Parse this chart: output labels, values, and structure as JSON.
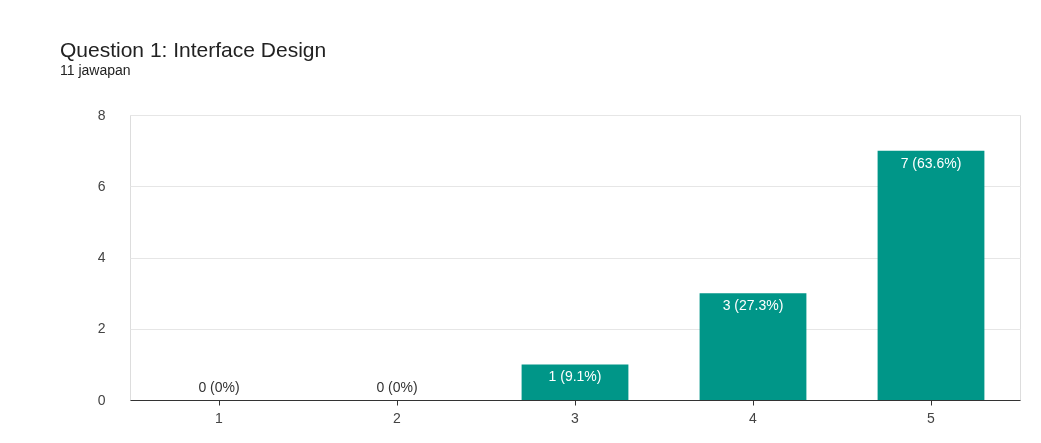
{
  "chart_data": {
    "type": "bar",
    "title": "Question 1: Interface Design",
    "subtitle": "11 jawapan",
    "categories": [
      "1",
      "2",
      "3",
      "4",
      "5"
    ],
    "values": [
      0,
      0,
      1,
      3,
      7
    ],
    "value_labels": [
      "0 (0%)",
      "0 (0%)",
      "1 (9.1%)",
      "3 (27.3%)",
      "7 (63.6%)"
    ],
    "color": "#009688",
    "ylim": [
      0,
      8
    ],
    "yticks": [
      0,
      2,
      4,
      6,
      8
    ],
    "grid": "y"
  }
}
